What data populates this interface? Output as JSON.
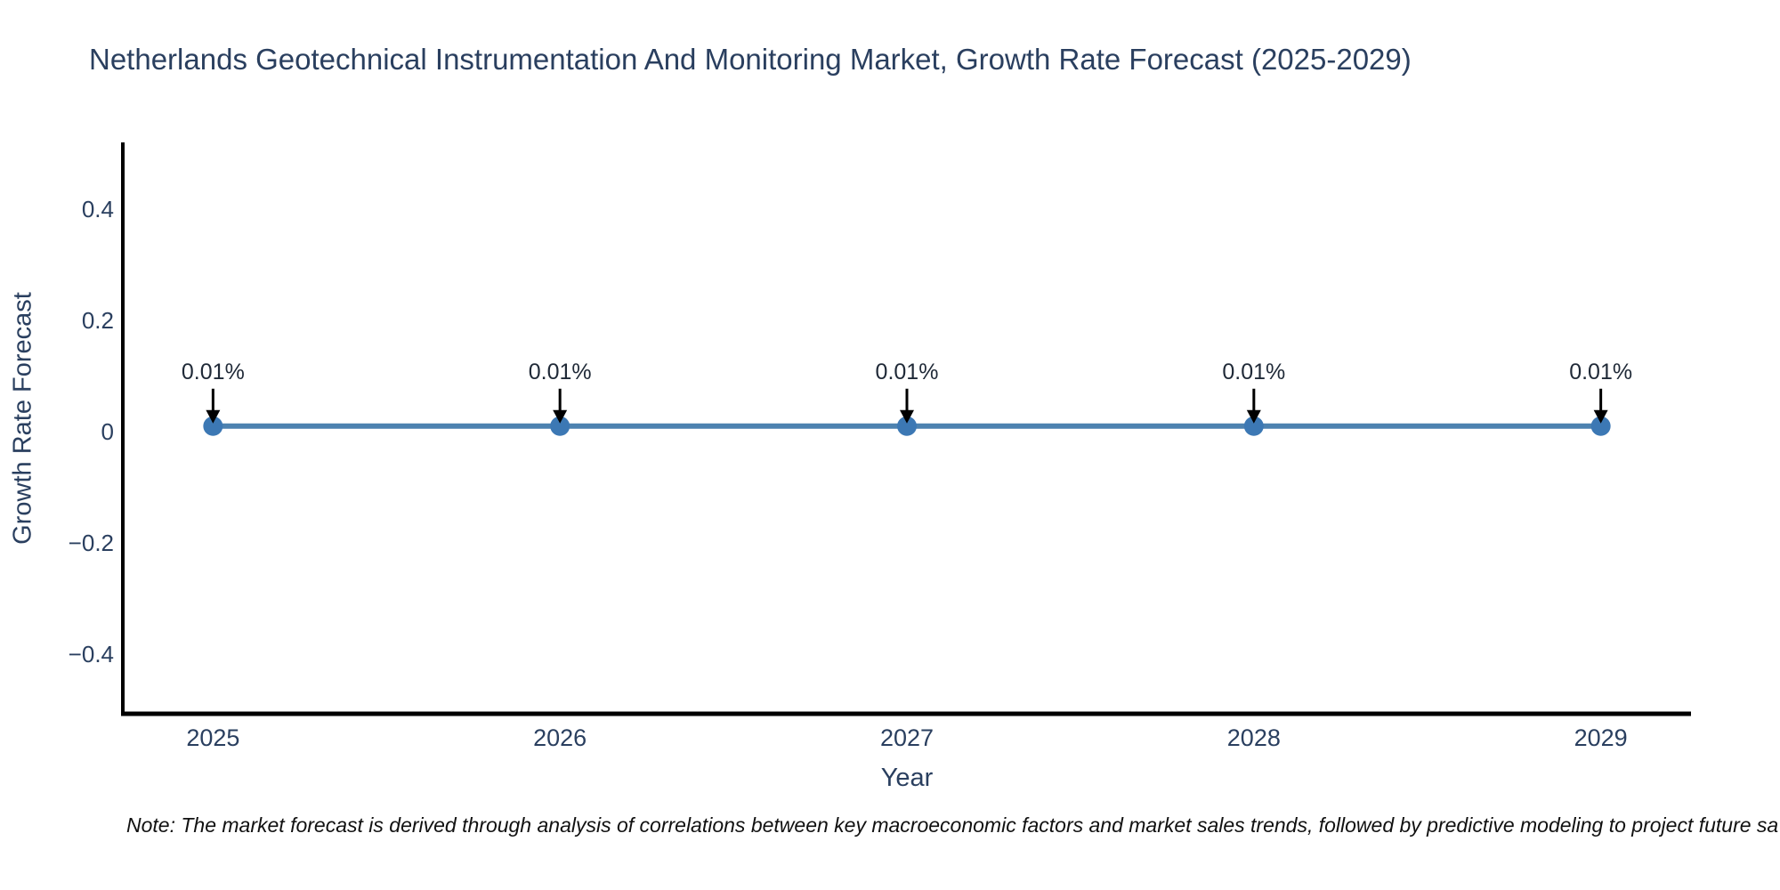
{
  "title": "Netherlands Geotechnical Instrumentation And Monitoring Market, Growth Rate Forecast (2025-2029)",
  "note": "Note: The market forecast is derived through analysis of correlations between key macroeconomic factors and market sales trends, followed by predictive modeling to project future sa",
  "chart_data": {
    "type": "line",
    "title": "Netherlands Geotechnical Instrumentation And Monitoring Market, Growth Rate Forecast (2025-2029)",
    "xlabel": "Year",
    "ylabel": "Growth Rate Forecast",
    "x": [
      2025,
      2026,
      2027,
      2028,
      2029
    ],
    "values": [
      0.01,
      0.01,
      0.01,
      0.01,
      0.01
    ],
    "point_labels": [
      "0.01%",
      "0.01%",
      "0.01%",
      "0.01%",
      "0.01%"
    ],
    "x_tick_labels": [
      "2025",
      "2026",
      "2027",
      "2028",
      "2029"
    ],
    "y_tick_values": [
      0.4,
      0.2,
      0,
      -0.2,
      -0.4
    ],
    "y_tick_labels": [
      "0.4",
      "0.2",
      "0",
      "−0.2",
      "−0.4"
    ],
    "xlim": [
      2024.74,
      2029.26
    ],
    "ylim": [
      -0.5072,
      0.52
    ],
    "grid": false,
    "legend": false,
    "colors": {
      "line": "#4d82b0",
      "marker": "#3c78b4",
      "axis": "#000000",
      "text": "#2a3f5f",
      "annotation": "#1f2937",
      "arrow": "#000000",
      "note": "#111111"
    }
  }
}
